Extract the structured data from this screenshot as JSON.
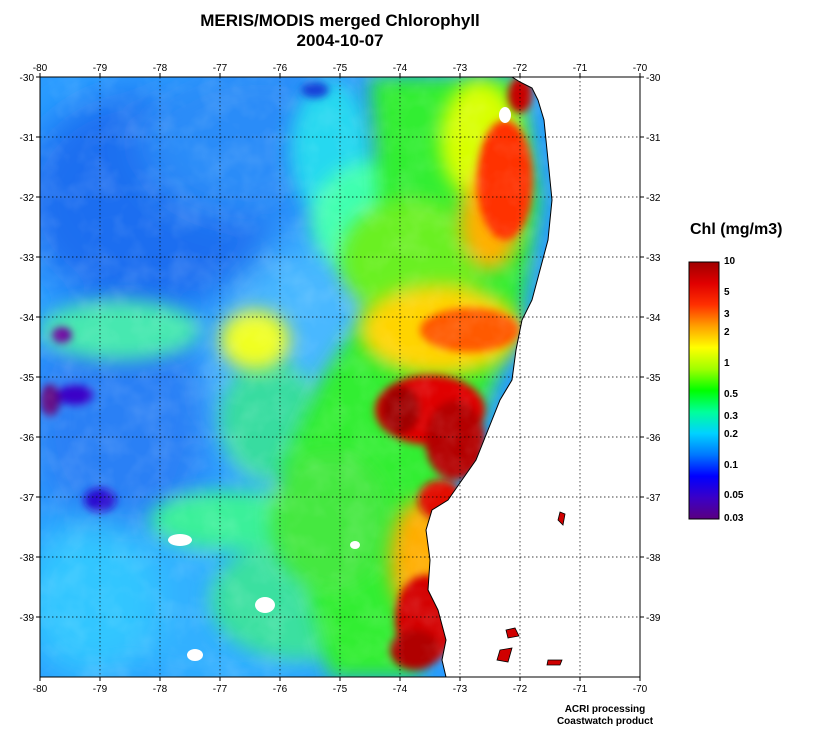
{
  "title": "MERIS/MODIS merged Chlorophyll",
  "date": "2004-10-07",
  "colorbar": {
    "title": "Chl (mg/m3)",
    "labels": [
      "10",
      "5",
      "3",
      "2",
      "1",
      "0.5",
      "0.3",
      "0.2",
      "0.1",
      "0.05",
      "0.03"
    ],
    "values": [
      10,
      5,
      3,
      2,
      1,
      0.5,
      0.3,
      0.2,
      0.1,
      0.05,
      0.03
    ],
    "range": [
      0.03,
      10
    ],
    "scale": "log",
    "colors": [
      "#5a0080",
      "#3a00c8",
      "#0000ff",
      "#0078ff",
      "#00d2ff",
      "#00ff9a",
      "#00ff00",
      "#a0ff00",
      "#ffff00",
      "#ffa000",
      "#ff3000",
      "#e00000",
      "#a00000"
    ]
  },
  "axes": {
    "lon_ticks": [
      "-80",
      "-79",
      "-78",
      "-77",
      "-76",
      "-75",
      "-74",
      "-73",
      "-72",
      "-71",
      "-70"
    ],
    "lat_ticks": [
      "-30",
      "-31",
      "-32",
      "-33",
      "-34",
      "-35",
      "-36",
      "-37",
      "-38",
      "-39"
    ],
    "lon_range": [
      -80,
      -70
    ],
    "lat_range": [
      -40,
      -30
    ],
    "grid": true,
    "grid_style": "dotted"
  },
  "credit": {
    "line1": "ACRI processing",
    "line2": "Coastwatch product"
  }
}
